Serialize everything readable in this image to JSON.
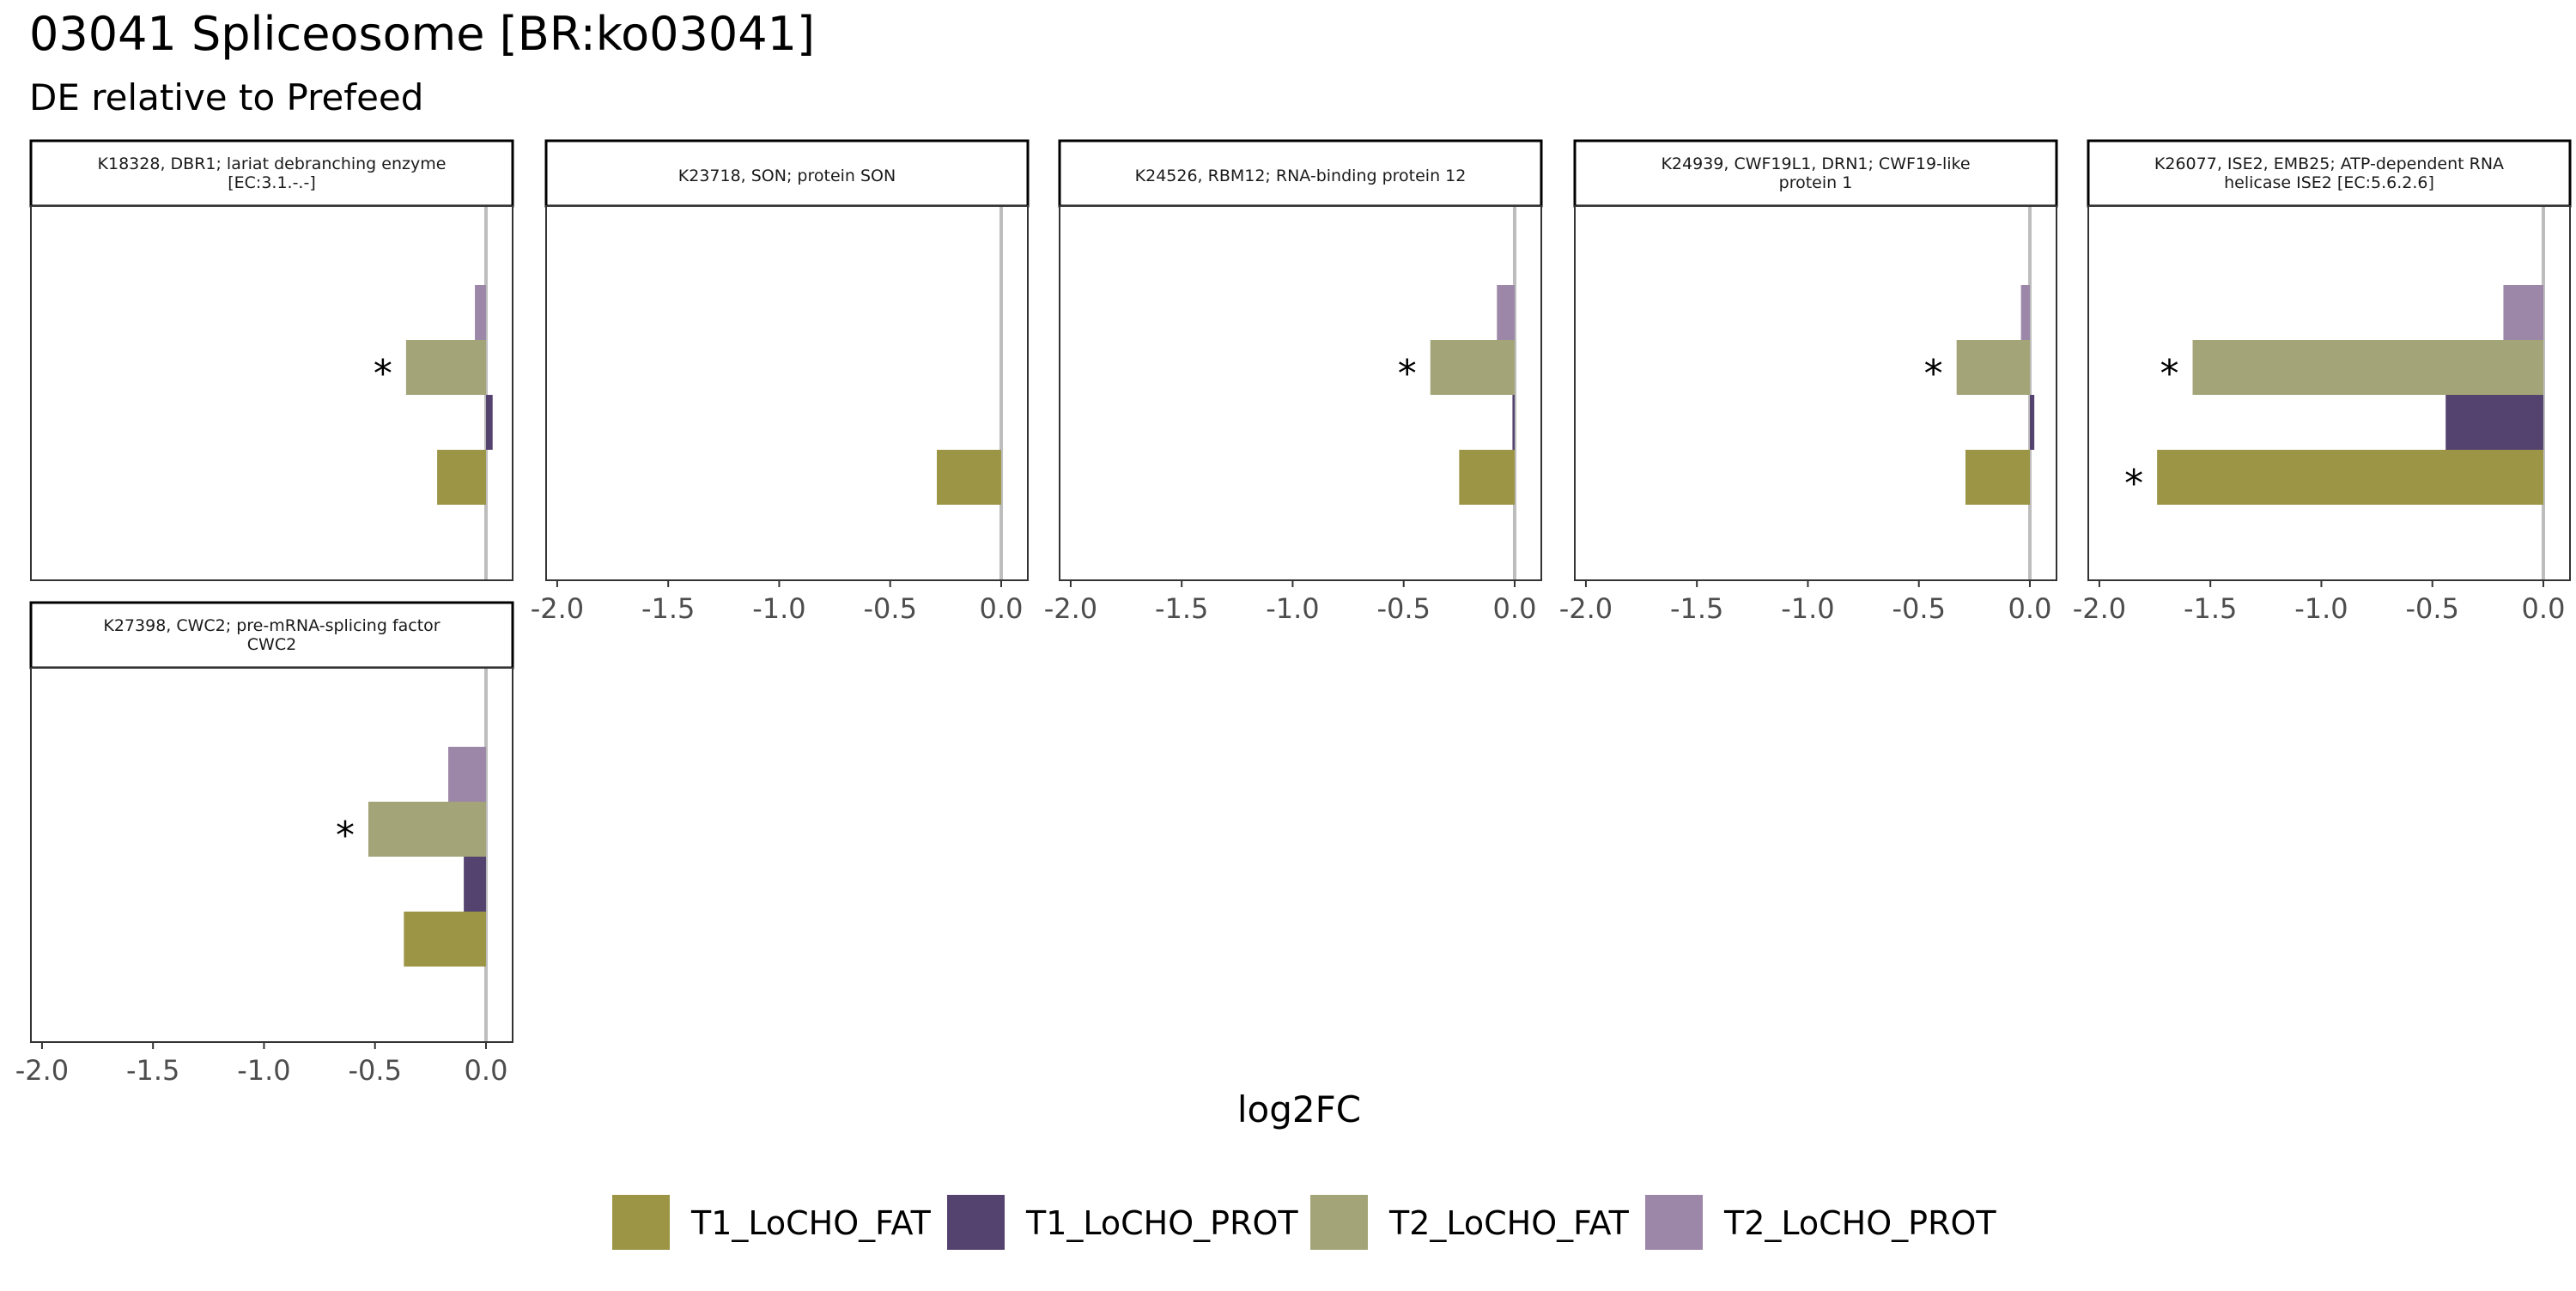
{
  "page": {
    "title": "03041 Spliceosome [BR:ko03041]",
    "subtitle": "DE relative to Prefeed",
    "xlabel": "log2FC"
  },
  "chart_data": {
    "type": "bar",
    "orientation": "horizontal",
    "title": "03041 Spliceosome [BR:ko03041]",
    "subtitle": "DE relative to Prefeed",
    "xlabel": "log2FC",
    "ylabel": "",
    "xlim": [
      -2.05,
      0.12
    ],
    "xticks": [
      -2.0,
      -1.5,
      -1.0,
      -0.5,
      0.0
    ],
    "xtick_labels": [
      "-2.0",
      "-1.5",
      "-1.0",
      "-0.5",
      "0.0"
    ],
    "reference_line_x": 0,
    "significance_marker": "*",
    "grid": false,
    "legend_position": "bottom",
    "series_order_top_to_bottom": [
      "T2_LoCHO_PROT",
      "T2_LoCHO_FAT",
      "T1_LoCHO_PROT",
      "T1_LoCHO_FAT"
    ],
    "legend": [
      {
        "name": "T1_LoCHO_FAT",
        "color": "#9c9546"
      },
      {
        "name": "T1_LoCHO_PROT",
        "color": "#54426f"
      },
      {
        "name": "T2_LoCHO_FAT",
        "color": "#a3a578"
      },
      {
        "name": "T2_LoCHO_PROT",
        "color": "#9c87a8"
      }
    ],
    "panels": [
      {
        "label_lines": [
          "K18328, DBR1; lariat debranching enzyme",
          "[EC:3.1.-.-]"
        ],
        "bars": [
          {
            "series": "T2_LoCHO_PROT",
            "value": -0.05,
            "significant": false
          },
          {
            "series": "T2_LoCHO_FAT",
            "value": -0.36,
            "significant": true
          },
          {
            "series": "T1_LoCHO_PROT",
            "value": 0.03,
            "significant": false
          },
          {
            "series": "T1_LoCHO_FAT",
            "value": -0.22,
            "significant": false
          }
        ]
      },
      {
        "label_lines": [
          "K23718, SON; protein SON"
        ],
        "bars": [
          {
            "series": "T1_LoCHO_FAT",
            "value": -0.29,
            "significant": false
          }
        ]
      },
      {
        "label_lines": [
          "K24526, RBM12; RNA-binding protein 12"
        ],
        "bars": [
          {
            "series": "T2_LoCHO_PROT",
            "value": -0.08,
            "significant": false
          },
          {
            "series": "T2_LoCHO_FAT",
            "value": -0.38,
            "significant": true
          },
          {
            "series": "T1_LoCHO_PROT",
            "value": -0.01,
            "significant": false
          },
          {
            "series": "T1_LoCHO_FAT",
            "value": -0.25,
            "significant": false
          }
        ]
      },
      {
        "label_lines": [
          "K24939, CWF19L1, DRN1; CWF19-like",
          "protein 1"
        ],
        "bars": [
          {
            "series": "T2_LoCHO_PROT",
            "value": -0.04,
            "significant": false
          },
          {
            "series": "T2_LoCHO_FAT",
            "value": -0.33,
            "significant": true
          },
          {
            "series": "T1_LoCHO_PROT",
            "value": 0.02,
            "significant": false
          },
          {
            "series": "T1_LoCHO_FAT",
            "value": -0.29,
            "significant": false
          }
        ]
      },
      {
        "label_lines": [
          "K26077, ISE2, EMB25; ATP-dependent RNA",
          "helicase ISE2 [EC:5.6.2.6]"
        ],
        "bars": [
          {
            "series": "T2_LoCHO_PROT",
            "value": -0.18,
            "significant": false
          },
          {
            "series": "T2_LoCHO_FAT",
            "value": -1.58,
            "significant": true
          },
          {
            "series": "T1_LoCHO_PROT",
            "value": -0.44,
            "significant": false
          },
          {
            "series": "T1_LoCHO_FAT",
            "value": -1.74,
            "significant": true
          }
        ]
      },
      {
        "label_lines": [
          "K27398, CWC2; pre-mRNA-splicing factor",
          "CWC2"
        ],
        "bars": [
          {
            "series": "T2_LoCHO_PROT",
            "value": -0.17,
            "significant": false
          },
          {
            "series": "T2_LoCHO_FAT",
            "value": -0.53,
            "significant": true
          },
          {
            "series": "T1_LoCHO_PROT",
            "value": -0.1,
            "significant": false
          },
          {
            "series": "T1_LoCHO_FAT",
            "value": -0.37,
            "significant": false
          }
        ]
      }
    ]
  }
}
